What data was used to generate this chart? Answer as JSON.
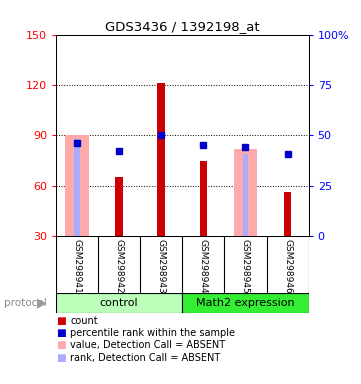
{
  "title": "GDS3436 / 1392198_at",
  "samples": [
    "GSM298941",
    "GSM298942",
    "GSM298943",
    "GSM298944",
    "GSM298945",
    "GSM298946"
  ],
  "group_labels": [
    "control",
    "Math2 expression"
  ],
  "count_values": [
    30,
    65,
    121,
    75,
    30,
    56
  ],
  "percentile_values": [
    46,
    42,
    50,
    45,
    44,
    41
  ],
  "absent_value_tops": [
    90,
    null,
    null,
    null,
    82,
    null
  ],
  "absent_rank_tops": [
    88,
    null,
    null,
    null,
    79,
    null
  ],
  "ylim_left": [
    30,
    150
  ],
  "ylim_right": [
    0,
    100
  ],
  "yticks_left": [
    30,
    60,
    90,
    120,
    150
  ],
  "yticks_right": [
    0,
    25,
    50,
    75,
    100
  ],
  "yticklabels_right": [
    "0",
    "25",
    "50",
    "75",
    "100%"
  ],
  "count_color": "#cc0000",
  "percentile_color": "#0000cc",
  "absent_value_color": "#ffaaaa",
  "absent_rank_color": "#aaaaff",
  "sample_bg_color": "#cccccc",
  "ctrl_color": "#bbffbb",
  "math2_color": "#33ee33",
  "legend_labels": [
    "count",
    "percentile rank within the sample",
    "value, Detection Call = ABSENT",
    "rank, Detection Call = ABSENT"
  ],
  "legend_colors": [
    "#cc0000",
    "#0000cc",
    "#ffaaaa",
    "#aaaaff"
  ]
}
